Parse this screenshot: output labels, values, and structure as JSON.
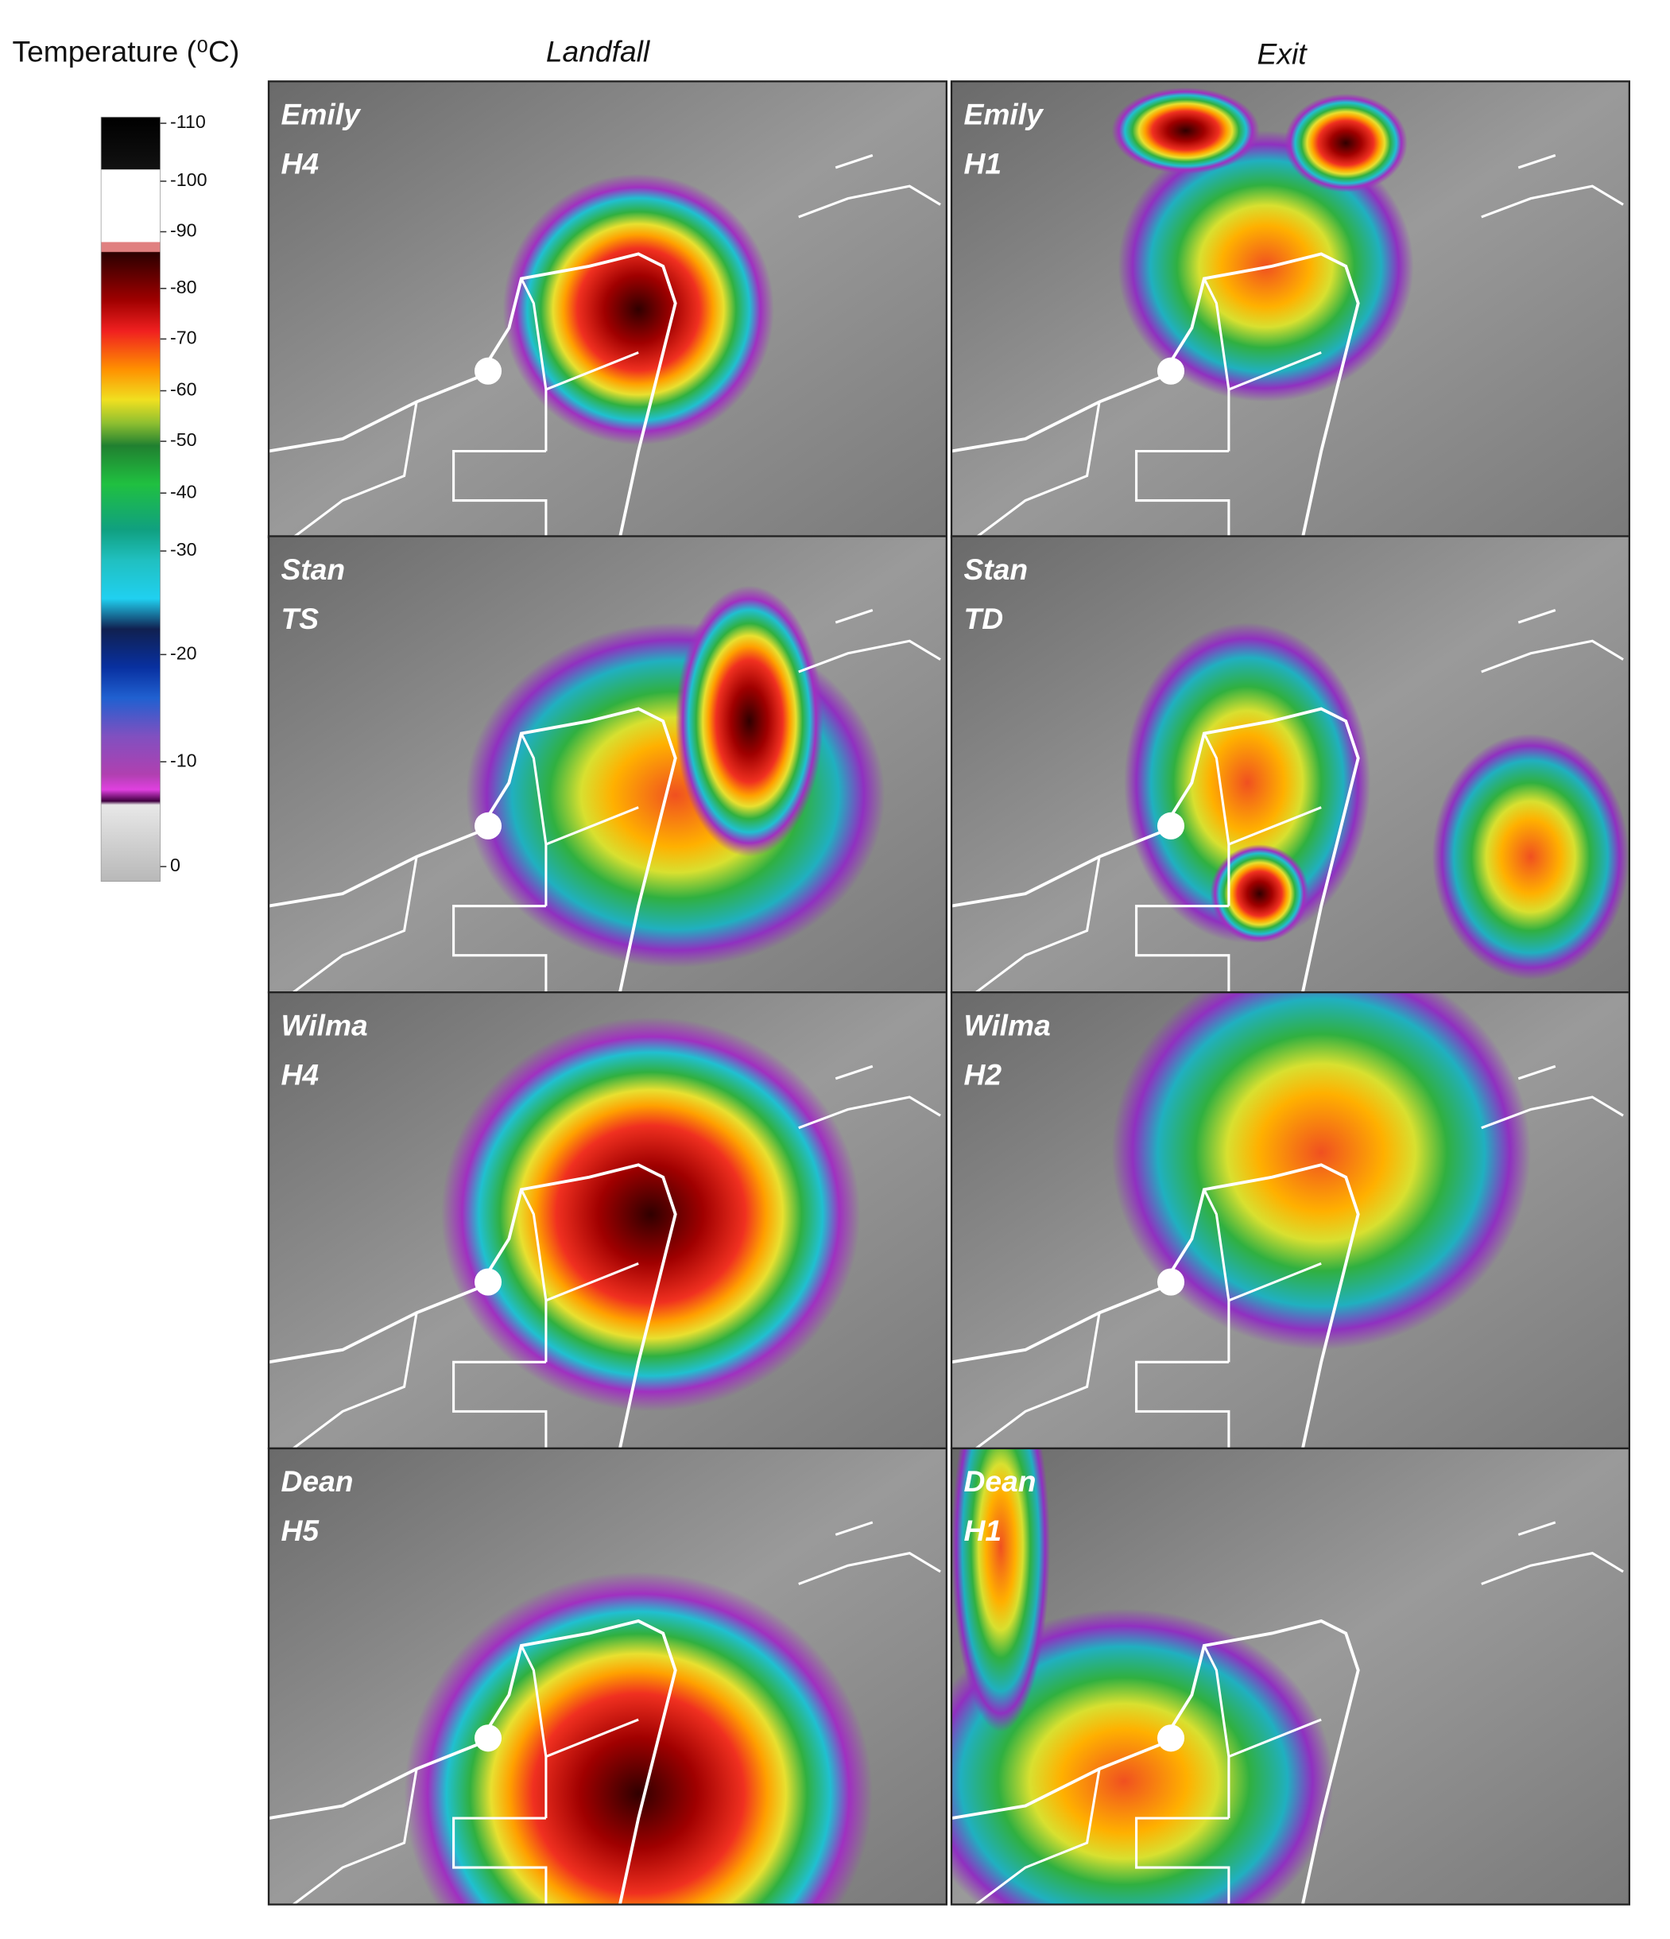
{
  "colorbar": {
    "title": "Temperature (⁰C)",
    "ticks": [
      -110,
      -100,
      -90,
      -80,
      -70,
      -60,
      -50,
      -40,
      -30,
      -20,
      -10,
      0
    ]
  },
  "columns": [
    "Landfall",
    "Exit"
  ],
  "panels": [
    {
      "storm": "Emily",
      "category": "H4"
    },
    {
      "storm": "Emily",
      "category": "H1"
    },
    {
      "storm": "Stan",
      "category": "TS"
    },
    {
      "storm": "Stan",
      "category": "TD"
    },
    {
      "storm": "Wilma",
      "category": "H4"
    },
    {
      "storm": "Wilma",
      "category": "H2"
    },
    {
      "storm": "Dean",
      "category": "H5"
    },
    {
      "storm": "Dean",
      "category": "H1"
    }
  ]
}
